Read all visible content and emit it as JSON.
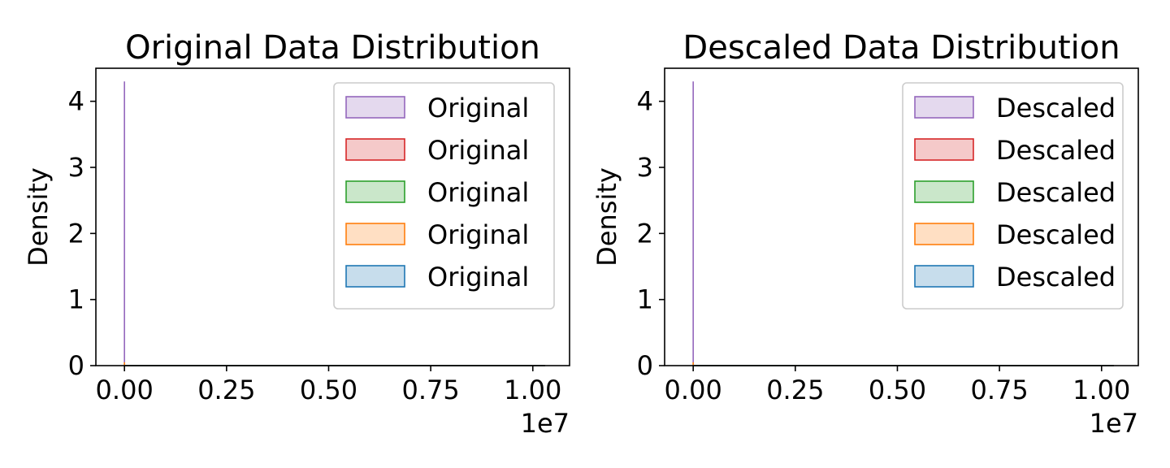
{
  "chart_data": [
    {
      "type": "area",
      "title": "Original Data Distribution",
      "xlabel": "",
      "ylabel": "Density",
      "x_offset_label": "1e7",
      "xlim": [
        -700000,
        10900000
      ],
      "ylim": [
        0,
        4.5
      ],
      "x_ticks": [
        0,
        2500000,
        5000000,
        7500000,
        10000000
      ],
      "x_tick_labels": [
        "0.00",
        "0.25",
        "0.50",
        "0.75",
        "1.00"
      ],
      "y_ticks": [
        0,
        1,
        2,
        3,
        4
      ],
      "y_tick_labels": [
        "0",
        "1",
        "2",
        "3",
        "4"
      ],
      "legend_position": "top-right",
      "grid": false,
      "series": [
        {
          "name": "Original",
          "color": "#9467bd",
          "x": [
            0,
            0,
            10300000
          ],
          "y": [
            4.3,
            0,
            0
          ]
        },
        {
          "name": "Original",
          "color": "#d62728",
          "x": [
            0,
            10300000
          ],
          "y": [
            0,
            0
          ]
        },
        {
          "name": "Original",
          "color": "#2ca02c",
          "x": [
            0,
            10300000
          ],
          "y": [
            0,
            0
          ]
        },
        {
          "name": "Original",
          "color": "#ff7f0e",
          "x": [
            0,
            0,
            10300000
          ],
          "y": [
            0.05,
            0,
            0
          ]
        },
        {
          "name": "Original",
          "color": "#1f77b4",
          "x": [
            0,
            10300000
          ],
          "y": [
            0,
            0
          ]
        }
      ]
    },
    {
      "type": "area",
      "title": "Descaled Data Distribution",
      "xlabel": "",
      "ylabel": "Density",
      "x_offset_label": "1e7",
      "xlim": [
        -700000,
        10900000
      ],
      "ylim": [
        0,
        4.5
      ],
      "x_ticks": [
        0,
        2500000,
        5000000,
        7500000,
        10000000
      ],
      "x_tick_labels": [
        "0.00",
        "0.25",
        "0.50",
        "0.75",
        "1.00"
      ],
      "y_ticks": [
        0,
        1,
        2,
        3,
        4
      ],
      "y_tick_labels": [
        "0",
        "1",
        "2",
        "3",
        "4"
      ],
      "legend_position": "top-right",
      "grid": false,
      "series": [
        {
          "name": "Descaled",
          "color": "#9467bd",
          "x": [
            0,
            0,
            10300000
          ],
          "y": [
            4.3,
            0,
            0
          ]
        },
        {
          "name": "Descaled",
          "color": "#d62728",
          "x": [
            0,
            10300000
          ],
          "y": [
            0,
            0
          ]
        },
        {
          "name": "Descaled",
          "color": "#2ca02c",
          "x": [
            0,
            10300000
          ],
          "y": [
            0,
            0
          ]
        },
        {
          "name": "Descaled",
          "color": "#ff7f0e",
          "x": [
            0,
            0,
            10300000
          ],
          "y": [
            0.05,
            0,
            0
          ]
        },
        {
          "name": "Descaled",
          "color": "#1f77b4",
          "x": [
            0,
            10300000
          ],
          "y": [
            0,
            0
          ]
        }
      ]
    }
  ]
}
